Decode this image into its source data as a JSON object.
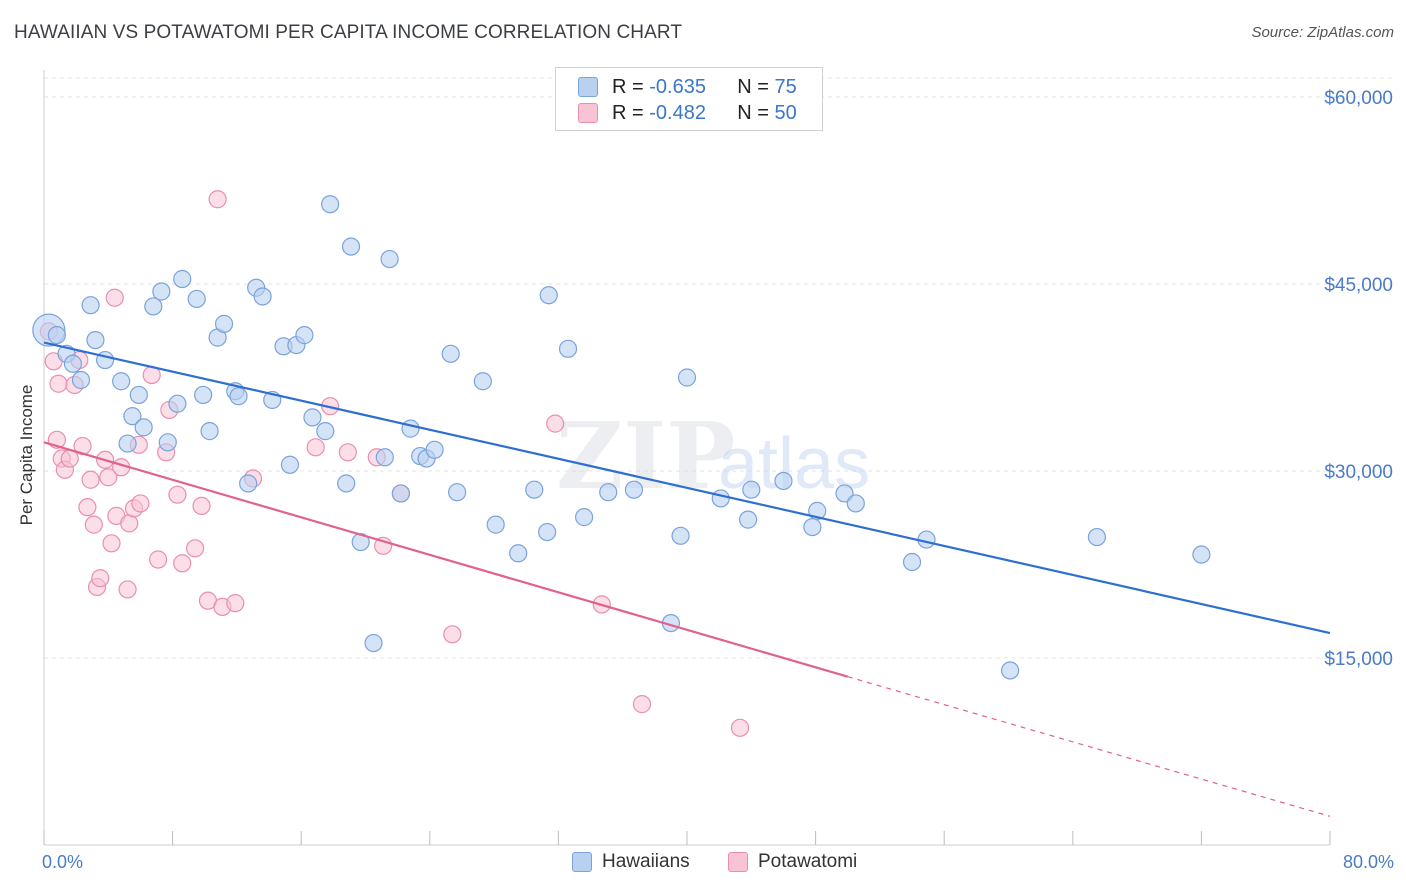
{
  "title": "HAWAIIAN VS POTAWATOMI PER CAPITA INCOME CORRELATION CHART",
  "source": "Source: ZipAtlas.com",
  "ylabel": "Per Capita Income",
  "watermark": {
    "zip": "ZIP",
    "atlas": "atlas"
  },
  "colors": {
    "hawaiians_fill": "#b9d1f1",
    "hawaiians_stroke": "#7aa3dc",
    "hawaiians_line": "#2f6fd0",
    "potawatomi_fill": "#f8c3d4",
    "potawatomi_stroke": "#e98fae",
    "potawatomi_line": "#e0628e",
    "axis_text": "#4a7bc8",
    "grid": "#e3e3e3"
  },
  "legend": {
    "rows": [
      {
        "r_label": "R = ",
        "r_value": "-0.635",
        "n_label": "N = ",
        "n_value": "75"
      },
      {
        "r_label": "R = ",
        "r_value": "-0.482",
        "n_label": "N = ",
        "n_value": "50"
      }
    ],
    "series_names": [
      "Hawaiians",
      "Potawatomi"
    ]
  },
  "chart_data": {
    "type": "scatter",
    "title": "HAWAIIAN VS POTAWATOMI PER CAPITA INCOME CORRELATION CHART",
    "xlabel": "",
    "ylabel": "Per Capita Income",
    "xlim": [
      0,
      80
    ],
    "ylim": [
      0,
      61000
    ],
    "x_tick_labels": [
      "0.0%",
      "80.0%"
    ],
    "y_ticks": [
      15000,
      30000,
      45000,
      60000
    ],
    "y_tick_labels": [
      "$15,000",
      "$30,000",
      "$45,000",
      "$60,000"
    ],
    "grid": true,
    "legend_position": "top-center",
    "series": [
      {
        "name": "Hawaiians",
        "r": -0.635,
        "n": 75,
        "trend": {
          "x0": 0,
          "y0": 40300,
          "x1": 80,
          "y1": 17000
        },
        "points": [
          [
            0.3,
            41300
          ],
          [
            0.8,
            40900
          ],
          [
            1.4,
            39400
          ],
          [
            1.8,
            38600
          ],
          [
            2.3,
            37300
          ],
          [
            2.9,
            43300
          ],
          [
            3.2,
            40500
          ],
          [
            3.8,
            38900
          ],
          [
            4.8,
            37200
          ],
          [
            5.2,
            32200
          ],
          [
            5.5,
            34400
          ],
          [
            5.9,
            36100
          ],
          [
            6.2,
            33500
          ],
          [
            6.8,
            43200
          ],
          [
            7.3,
            44400
          ],
          [
            7.7,
            32300
          ],
          [
            8.3,
            35400
          ],
          [
            8.6,
            45400
          ],
          [
            9.5,
            43800
          ],
          [
            9.9,
            36100
          ],
          [
            10.3,
            33200
          ],
          [
            10.8,
            40700
          ],
          [
            11.2,
            41800
          ],
          [
            11.9,
            36400
          ],
          [
            12.1,
            36000
          ],
          [
            12.7,
            29000
          ],
          [
            13.2,
            44700
          ],
          [
            13.6,
            44000
          ],
          [
            14.2,
            35700
          ],
          [
            14.9,
            40000
          ],
          [
            15.3,
            30500
          ],
          [
            15.7,
            40100
          ],
          [
            16.2,
            40900
          ],
          [
            16.7,
            34300
          ],
          [
            17.5,
            33200
          ],
          [
            17.8,
            51400
          ],
          [
            18.8,
            29000
          ],
          [
            19.1,
            48000
          ],
          [
            19.7,
            24300
          ],
          [
            20.5,
            16200
          ],
          [
            21.2,
            31100
          ],
          [
            21.5,
            47000
          ],
          [
            22.2,
            28200
          ],
          [
            22.8,
            33400
          ],
          [
            23.4,
            31200
          ],
          [
            23.8,
            31000
          ],
          [
            24.3,
            31700
          ],
          [
            25.3,
            39400
          ],
          [
            25.7,
            28300
          ],
          [
            27.3,
            37200
          ],
          [
            28.1,
            25700
          ],
          [
            29.5,
            23400
          ],
          [
            30.5,
            28500
          ],
          [
            31.3,
            25100
          ],
          [
            31.4,
            44100
          ],
          [
            32.6,
            39800
          ],
          [
            33.6,
            26300
          ],
          [
            35.1,
            28300
          ],
          [
            36.7,
            28500
          ],
          [
            39.0,
            17800
          ],
          [
            39.6,
            24800
          ],
          [
            40.0,
            37500
          ],
          [
            42.1,
            27800
          ],
          [
            43.8,
            26100
          ],
          [
            44.0,
            28500
          ],
          [
            46.0,
            29200
          ],
          [
            47.8,
            25500
          ],
          [
            48.1,
            26800
          ],
          [
            49.8,
            28200
          ],
          [
            50.5,
            27400
          ],
          [
            54.0,
            22700
          ],
          [
            54.9,
            24500
          ],
          [
            60.1,
            14000
          ],
          [
            65.5,
            24700
          ],
          [
            72.0,
            23300
          ]
        ]
      },
      {
        "name": "Potawatomi",
        "r": -0.482,
        "n": 50,
        "trend": {
          "x0": 0,
          "y0": 32300,
          "x1": 50,
          "y1": 13500,
          "dashed_to": {
            "x": 80,
            "y": 2300
          }
        },
        "points": [
          [
            0.3,
            41200
          ],
          [
            0.6,
            38800
          ],
          [
            0.9,
            37000
          ],
          [
            0.8,
            32500
          ],
          [
            1.1,
            31000
          ],
          [
            1.3,
            30100
          ],
          [
            1.6,
            31000
          ],
          [
            1.9,
            36900
          ],
          [
            2.2,
            38900
          ],
          [
            2.4,
            32000
          ],
          [
            2.7,
            27100
          ],
          [
            2.9,
            29300
          ],
          [
            3.1,
            25700
          ],
          [
            3.3,
            20700
          ],
          [
            3.5,
            21400
          ],
          [
            3.8,
            30900
          ],
          [
            4.0,
            29500
          ],
          [
            4.2,
            24200
          ],
          [
            4.4,
            43900
          ],
          [
            4.5,
            26400
          ],
          [
            4.8,
            30300
          ],
          [
            5.2,
            20500
          ],
          [
            5.3,
            25800
          ],
          [
            5.6,
            27000
          ],
          [
            5.9,
            32100
          ],
          [
            6.0,
            27400
          ],
          [
            6.7,
            37700
          ],
          [
            7.1,
            22900
          ],
          [
            7.6,
            31500
          ],
          [
            7.8,
            34900
          ],
          [
            8.3,
            28100
          ],
          [
            8.6,
            22600
          ],
          [
            9.4,
            23800
          ],
          [
            9.8,
            27200
          ],
          [
            10.2,
            19600
          ],
          [
            10.8,
            51800
          ],
          [
            11.1,
            19100
          ],
          [
            11.9,
            19400
          ],
          [
            13.0,
            29400
          ],
          [
            17.8,
            35200
          ],
          [
            18.9,
            31500
          ],
          [
            20.7,
            31100
          ],
          [
            21.1,
            24000
          ],
          [
            22.2,
            28200
          ],
          [
            25.4,
            16900
          ],
          [
            31.8,
            33800
          ],
          [
            34.7,
            19300
          ],
          [
            37.2,
            11300
          ],
          [
            43.3,
            9400
          ],
          [
            16.9,
            31900
          ]
        ]
      }
    ]
  }
}
